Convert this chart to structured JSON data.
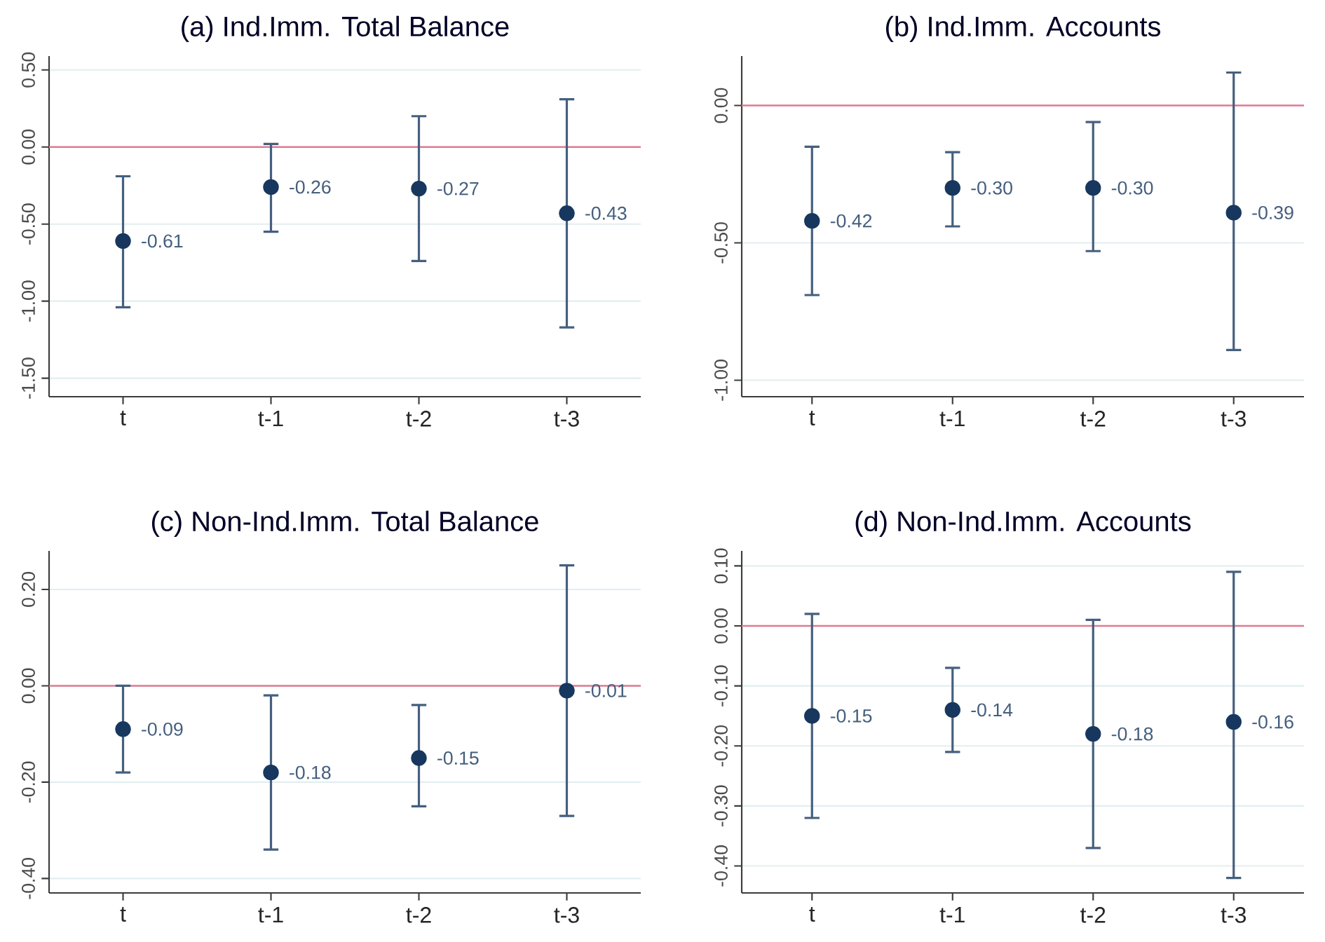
{
  "chart_data": [
    {
      "type": "scatter",
      "title": "(a) Ind.Imm. Total Balance",
      "categories": [
        "t",
        "t-1",
        "t-2",
        "t-3"
      ],
      "values": [
        -0.61,
        -0.26,
        -0.27,
        -0.43
      ],
      "errors": [
        [
          -1.04,
          -0.19
        ],
        [
          -0.55,
          0.02
        ],
        [
          -0.74,
          0.2
        ],
        [
          -1.17,
          0.31
        ]
      ],
      "value_labels": [
        "-0.61",
        "-0.26",
        "-0.27",
        "-0.43"
      ],
      "color": "#17375e",
      "marker": "circle",
      "ylim": [
        -1.62,
        0.59
      ],
      "yticks": [
        {
          "value": -1.5,
          "label": "-1.50"
        },
        {
          "value": -1,
          "label": "-1.00"
        },
        {
          "value": -0.5,
          "label": "-0.50"
        },
        {
          "value": 0,
          "label": "0.00"
        },
        {
          "value": 0.5,
          "label": "0.50"
        }
      ],
      "grid": "y",
      "ref_lines": [
        {
          "axis": "y",
          "value": 0,
          "color": "#e07b91"
        }
      ]
    },
    {
      "type": "scatter",
      "title": "(b) Ind.Imm. Accounts",
      "categories": [
        "t",
        "t-1",
        "t-2",
        "t-3"
      ],
      "values": [
        -0.42,
        -0.3,
        -0.3,
        -0.39
      ],
      "errors": [
        [
          -0.69,
          -0.15
        ],
        [
          -0.44,
          -0.17
        ],
        [
          -0.53,
          -0.06
        ],
        [
          -0.89,
          0.12
        ]
      ],
      "value_labels": [
        "-0.42",
        "-0.30",
        "-0.30",
        "-0.39"
      ],
      "color": "#17375e",
      "marker": "circle",
      "ylim": [
        -1.06,
        0.18
      ],
      "yticks": [
        {
          "value": -1,
          "label": "-1.00"
        },
        {
          "value": -0.5,
          "label": "-0.50"
        },
        {
          "value": 0,
          "label": "0.00"
        }
      ],
      "grid": "y",
      "ref_lines": [
        {
          "axis": "y",
          "value": 0,
          "color": "#e07b91"
        }
      ]
    },
    {
      "type": "scatter",
      "title": "(c) Non-Ind.Imm. Total Balance",
      "categories": [
        "t",
        "t-1",
        "t-2",
        "t-3"
      ],
      "values": [
        -0.09,
        -0.18,
        -0.15,
        -0.01
      ],
      "errors": [
        [
          -0.18,
          0.0
        ],
        [
          -0.34,
          -0.02
        ],
        [
          -0.25,
          -0.04
        ],
        [
          -0.27,
          0.25
        ]
      ],
      "value_labels": [
        "-0.09",
        "-0.18",
        "-0.15",
        "-0.01"
      ],
      "color": "#17375e",
      "marker": "circle",
      "ylim": [
        -0.43,
        0.28
      ],
      "yticks": [
        {
          "value": -0.4,
          "label": "-0.40"
        },
        {
          "value": -0.2,
          "label": "-0.20"
        },
        {
          "value": 0,
          "label": "0.00"
        },
        {
          "value": 0.2,
          "label": "0.20"
        }
      ],
      "grid": "y",
      "ref_lines": [
        {
          "axis": "y",
          "value": 0,
          "color": "#e07b91"
        }
      ]
    },
    {
      "type": "scatter",
      "title": "(d) Non-Ind.Imm. Accounts",
      "categories": [
        "t",
        "t-1",
        "t-2",
        "t-3"
      ],
      "values": [
        -0.15,
        -0.14,
        -0.18,
        -0.16
      ],
      "errors": [
        [
          -0.32,
          0.02
        ],
        [
          -0.21,
          -0.07
        ],
        [
          -0.37,
          0.01
        ],
        [
          -0.42,
          0.09
        ]
      ],
      "value_labels": [
        "-0.15",
        "-0.14",
        "-0.18",
        "-0.16"
      ],
      "color": "#17375e",
      "marker": "circle",
      "ylim": [
        -0.445,
        0.125
      ],
      "yticks": [
        {
          "value": -0.4,
          "label": "-0.40"
        },
        {
          "value": -0.3,
          "label": "-0.30"
        },
        {
          "value": -0.2,
          "label": "-0.20"
        },
        {
          "value": -0.1,
          "label": "-0.10"
        },
        {
          "value": 0,
          "label": "0.00"
        },
        {
          "value": 0.1,
          "label": "0.10"
        }
      ],
      "grid": "y",
      "ref_lines": [
        {
          "axis": "y",
          "value": 0,
          "color": "#e07b91"
        }
      ]
    }
  ]
}
